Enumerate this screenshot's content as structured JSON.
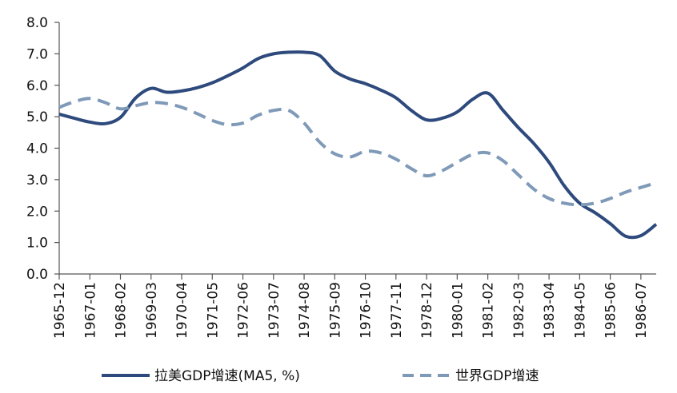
{
  "chart_data": {
    "type": "line",
    "title": "",
    "xlabel": "",
    "ylabel": "",
    "ylim": [
      0,
      8
    ],
    "yticks": [
      "0.0",
      "1.0",
      "2.0",
      "3.0",
      "4.0",
      "5.0",
      "6.0",
      "7.0",
      "8.0"
    ],
    "categories": [
      "1965-12",
      "1967-01",
      "1968-02",
      "1969-03",
      "1970-04",
      "1971-05",
      "1972-06",
      "1973-07",
      "1974-08",
      "1975-09",
      "1976-10",
      "1977-11",
      "1978-12",
      "1980-01",
      "1981-02",
      "1982-03",
      "1983-04",
      "1984-05",
      "1985-06",
      "1986-07"
    ],
    "grid": false,
    "legend_position": "bottom",
    "series": [
      {
        "name": "拉美GDP增速(MA5, %)",
        "style": "solid",
        "color": "#2e4a7d",
        "x": [
          0,
          0.5,
          1,
          1.5,
          2,
          2.5,
          3,
          3.5,
          4,
          4.5,
          5,
          5.5,
          6,
          6.5,
          7,
          7.5,
          8,
          8.5,
          9,
          9.5,
          10,
          10.5,
          11,
          11.5,
          12,
          12.5,
          13,
          13.5,
          14,
          14.5,
          15,
          15.5,
          16,
          16.5,
          17,
          17.5,
          18,
          18.5,
          19,
          19.5
        ],
        "values": [
          5.08,
          4.95,
          4.83,
          4.78,
          4.98,
          5.6,
          5.9,
          5.78,
          5.82,
          5.92,
          6.08,
          6.3,
          6.55,
          6.85,
          7.0,
          7.05,
          7.05,
          6.95,
          6.45,
          6.2,
          6.05,
          5.85,
          5.6,
          5.2,
          4.9,
          4.95,
          5.15,
          5.55,
          5.75,
          5.2,
          4.65,
          4.15,
          3.55,
          2.8,
          2.25,
          1.95,
          1.6,
          1.2,
          1.22,
          1.58
        ]
      },
      {
        "name": "世界GDP增速",
        "style": "dashed",
        "color": "#7f9ab8",
        "x": [
          0,
          0.5,
          1,
          1.5,
          2,
          2.5,
          3,
          3.5,
          4,
          4.5,
          5,
          5.5,
          6,
          6.5,
          7,
          7.5,
          8,
          8.5,
          9,
          9.5,
          10,
          10.5,
          11,
          11.5,
          12,
          12.5,
          13,
          13.5,
          14,
          14.5,
          15,
          15.5,
          16,
          16.5,
          17,
          17.5,
          18,
          18.5,
          19,
          19.5
        ],
        "values": [
          5.3,
          5.48,
          5.58,
          5.45,
          5.25,
          5.35,
          5.45,
          5.42,
          5.3,
          5.1,
          4.88,
          4.75,
          4.8,
          5.05,
          5.2,
          5.2,
          4.8,
          4.2,
          3.82,
          3.72,
          3.9,
          3.85,
          3.65,
          3.35,
          3.12,
          3.28,
          3.55,
          3.8,
          3.85,
          3.6,
          3.15,
          2.7,
          2.4,
          2.25,
          2.2,
          2.25,
          2.4,
          2.6,
          2.75,
          2.9
        ]
      }
    ]
  }
}
